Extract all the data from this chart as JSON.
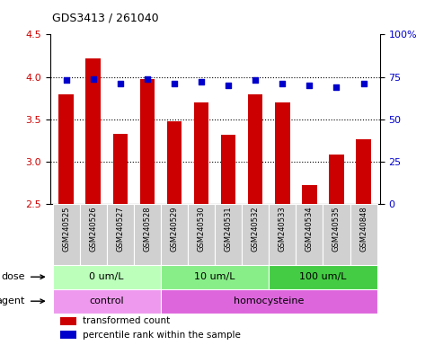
{
  "title": "GDS3413 / 261040",
  "samples": [
    "GSM240525",
    "GSM240526",
    "GSM240527",
    "GSM240528",
    "GSM240529",
    "GSM240530",
    "GSM240531",
    "GSM240532",
    "GSM240533",
    "GSM240534",
    "GSM240535",
    "GSM240848"
  ],
  "transformed_count": [
    3.8,
    4.22,
    3.33,
    3.97,
    3.48,
    3.7,
    3.32,
    3.79,
    3.7,
    2.73,
    3.08,
    3.27
  ],
  "percentile_rank": [
    73,
    74,
    71,
    74,
    71,
    72,
    70,
    73,
    71,
    70,
    69,
    71
  ],
  "ylim_left": [
    2.5,
    4.5
  ],
  "ylim_right": [
    0,
    100
  ],
  "yticks_left": [
    2.5,
    3.0,
    3.5,
    4.0,
    4.5
  ],
  "yticks_right": [
    0,
    25,
    50,
    75,
    100
  ],
  "ytick_labels_right": [
    "0",
    "25",
    "50",
    "75",
    "100%"
  ],
  "bar_color": "#cc0000",
  "dot_color": "#0000cc",
  "sample_bg_color": "#d0d0d0",
  "dose_groups": [
    {
      "label": "0 um/L",
      "start": 0,
      "end": 4,
      "color": "#bbffbb"
    },
    {
      "label": "10 um/L",
      "start": 4,
      "end": 8,
      "color": "#88ee88"
    },
    {
      "label": "100 um/L",
      "start": 8,
      "end": 12,
      "color": "#44cc44"
    }
  ],
  "agent_groups": [
    {
      "label": "control",
      "start": 0,
      "end": 4,
      "color": "#ee99ee"
    },
    {
      "label": "homocysteine",
      "start": 4,
      "end": 12,
      "color": "#dd66dd"
    }
  ],
  "dose_label": "dose",
  "agent_label": "agent",
  "legend_bar_label": "transformed count",
  "legend_dot_label": "percentile rank within the sample",
  "grid_color": "#000000",
  "plot_bg_color": "#ffffff",
  "tick_label_color_left": "#cc0000",
  "tick_label_color_right": "#0000cc",
  "bar_bottom": 2.5,
  "bar_width": 0.55
}
